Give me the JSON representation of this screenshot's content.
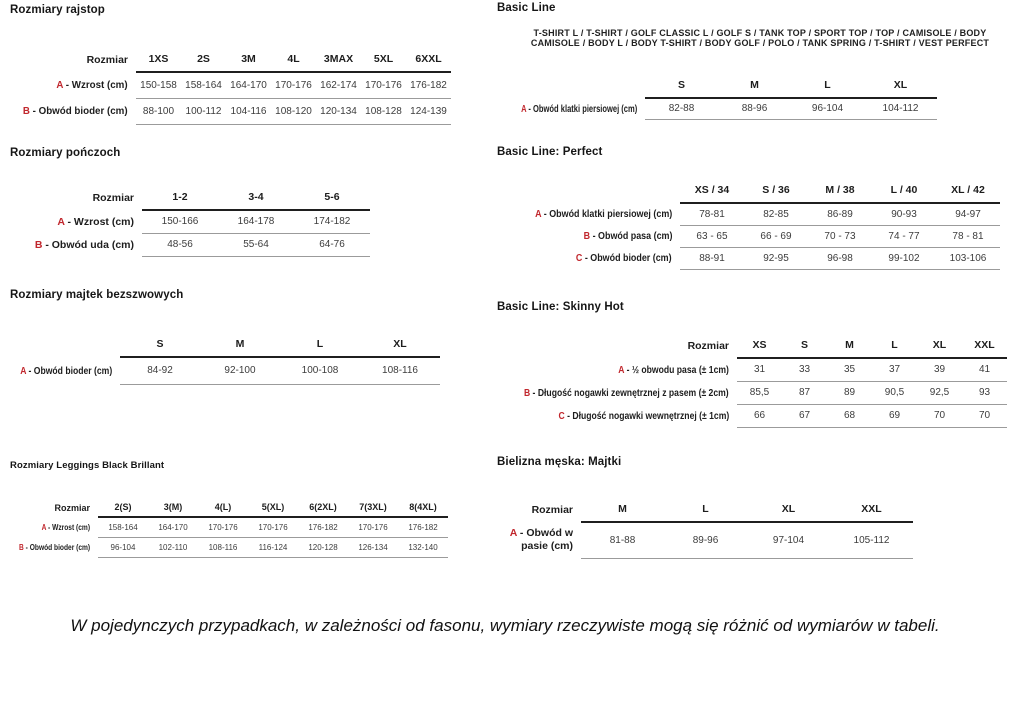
{
  "page": {
    "footnote": "W pojedynczych przypadkach, w zależności od fasonu, wymiary rzeczywiste mogą się różnić od wymiarów w tabeli.",
    "accent_red": "#c1272d",
    "line_thick_color": "#1f1f1f",
    "line_thin_color": "#9b9b9b"
  },
  "sections": {
    "rajstop": {
      "title": "Rozmiary rajstop",
      "corner": "Rozmiar",
      "columns": [
        "1XS",
        "2S",
        "3M",
        "4L",
        "3MAX",
        "5XL",
        "6XXL"
      ],
      "rows": [
        {
          "prefix": "A",
          "label": "- Wzrost (cm)",
          "values": [
            "150-158",
            "158-164",
            "164-170",
            "170-176",
            "162-174",
            "170-176",
            "176-182"
          ]
        },
        {
          "prefix": "B",
          "label": "- Obwód bioder (cm)",
          "values": [
            "88-100",
            "100-112",
            "104-116",
            "108-120",
            "120-134",
            "108-128",
            "124-139"
          ]
        }
      ]
    },
    "ponczochy": {
      "title": "Rozmiary pończoch",
      "corner": "Rozmiar",
      "columns": [
        "1-2",
        "3-4",
        "5-6"
      ],
      "rows": [
        {
          "prefix": "A",
          "label": "- Wzrost (cm)",
          "values": [
            "150-166",
            "164-178",
            "174-182"
          ]
        },
        {
          "prefix": "B",
          "label": "- Obwód uda (cm)",
          "values": [
            "48-56",
            "55-64",
            "64-76"
          ]
        }
      ]
    },
    "majtki_bezszwowe": {
      "title": "Rozmiary majtek bezszwowych",
      "corner": "",
      "columns": [
        "S",
        "M",
        "L",
        "XL"
      ],
      "rows": [
        {
          "prefix": "A",
          "label": "- Obwód bioder (cm)",
          "values": [
            "84-92",
            "92-100",
            "100-108",
            "108-116"
          ]
        }
      ]
    },
    "leggings": {
      "title": "Rozmiary Leggings Black Brillant",
      "corner": "Rozmiar",
      "columns": [
        "2(S)",
        "3(M)",
        "4(L)",
        "5(XL)",
        "6(2XL)",
        "7(3XL)",
        "8(4XL)"
      ],
      "rows": [
        {
          "prefix": "A",
          "label": "- Wzrost (cm)",
          "values": [
            "158-164",
            "164-170",
            "170-176",
            "170-176",
            "176-182",
            "170-176",
            "176-182"
          ]
        },
        {
          "prefix": "B",
          "label": "- Obwód bioder (cm)",
          "values": [
            "96-104",
            "102-110",
            "108-116",
            "116-124",
            "120-128",
            "126-134",
            "132-140"
          ]
        }
      ]
    },
    "basic_line": {
      "title": "Basic Line",
      "products_line1": "T-SHIRT L / T-SHIRT / GOLF CLASSIC L / GOLF S / TANK TOP / SPORT TOP / TOP / CAMISOLE / BODY",
      "products_line2": "CAMISOLE / BODY L / BODY T-SHIRT / BODY GOLF / POLO / TANK SPRING / T-SHIRT / VEST PERFECT",
      "corner": "",
      "columns": [
        "S",
        "M",
        "L",
        "XL"
      ],
      "rows": [
        {
          "prefix": "A",
          "label": "- Obwód klatki piersiowej (cm)",
          "values": [
            "82-88",
            "88-96",
            "96-104",
            "104-112"
          ]
        }
      ]
    },
    "perfect": {
      "title": "Basic Line: Perfect",
      "corner": "",
      "columns": [
        "XS / 34",
        "S / 36",
        "M / 38",
        "L / 40",
        "XL / 42"
      ],
      "rows": [
        {
          "prefix": "A",
          "label": "- Obwód klatki piersiowej (cm)",
          "values": [
            "78-81",
            "82-85",
            "86-89",
            "90-93",
            "94-97"
          ]
        },
        {
          "prefix": "B",
          "label": "- Obwód pasa (cm)",
          "values": [
            "63 - 65",
            "66 - 69",
            "70 - 73",
            "74 - 77",
            "78 - 81"
          ]
        },
        {
          "prefix": "C",
          "label": "- Obwód bioder (cm)",
          "values": [
            "88-91",
            "92-95",
            "96-98",
            "99-102",
            "103-106"
          ]
        }
      ]
    },
    "skinny_hot": {
      "title": "Basic Line: Skinny Hot",
      "corner": "Rozmiar",
      "columns": [
        "XS",
        "S",
        "M",
        "L",
        "XL",
        "XXL"
      ],
      "rows": [
        {
          "prefix": "A",
          "label": "- ½ obwodu pasa (± 1cm)",
          "values": [
            "31",
            "33",
            "35",
            "37",
            "39",
            "41"
          ]
        },
        {
          "prefix": "B",
          "label": "- Długość nogawki zewnętrznej z pasem (± 2cm)",
          "values": [
            "85,5",
            "87",
            "89",
            "90,5",
            "92,5",
            "93"
          ]
        },
        {
          "prefix": "C",
          "label": "- Długość nogawki wewnętrznej (± 1cm)",
          "values": [
            "66",
            "67",
            "68",
            "69",
            "70",
            "70"
          ]
        }
      ]
    },
    "majtki_meskie": {
      "title": "Bielizna męska: Majtki",
      "corner": "Rozmiar",
      "columns": [
        "M",
        "L",
        "XL",
        "XXL"
      ],
      "rows": [
        {
          "prefix": "A",
          "label": "- Obwód w pasie (cm)",
          "values": [
            "81-88",
            "89-96",
            "97-104",
            "105-112"
          ]
        }
      ]
    }
  }
}
